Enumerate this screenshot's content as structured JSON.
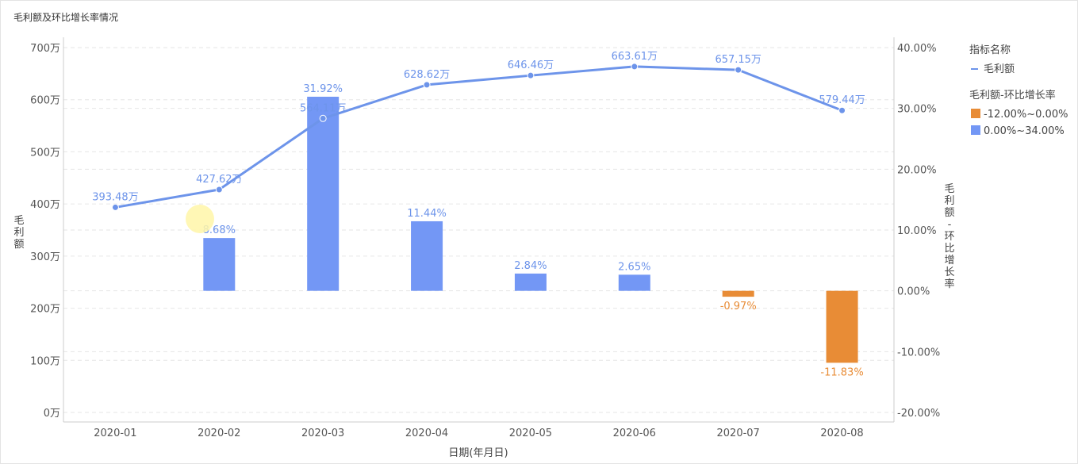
{
  "title": "毛利额及环比增长率情况",
  "colors": {
    "line": "#6d94ea",
    "bar_positive": "#7397f5",
    "bar_negative": "#e88c36",
    "grid": "#e6e6e6",
    "axis": "#cccccc"
  },
  "chart_data": {
    "type": "bar+line",
    "categories": [
      "2020-01",
      "2020-02",
      "2020-03",
      "2020-04",
      "2020-05",
      "2020-06",
      "2020-07",
      "2020-08"
    ],
    "xlabel": "日期(年月日)",
    "ylabel_left": "毛利额",
    "ylabel_right": "毛利额-环比增长率",
    "y_left": {
      "ticks": [
        "0万",
        "100万",
        "200万",
        "300万",
        "400万",
        "500万",
        "600万",
        "700万"
      ],
      "min": 0,
      "max": 700,
      "unit": "万"
    },
    "y_right": {
      "ticks": [
        "-20.00%",
        "-10.00%",
        "0.00%",
        "10.00%",
        "20.00%",
        "30.00%",
        "40.00%"
      ],
      "min": -20,
      "max": 40,
      "unit": "%"
    },
    "grid": true,
    "legend_placement": "right",
    "series": [
      {
        "name": "毛利额",
        "type": "line",
        "axis": "left",
        "values": [
          393.48,
          427.62,
          564.11,
          628.62,
          646.46,
          663.61,
          657.15,
          579.44
        ],
        "labels": [
          "393.48万",
          "427.62万",
          "564.11万",
          "628.62万",
          "646.46万",
          "663.61万",
          "657.15万",
          "579.44万"
        ]
      },
      {
        "name": "毛利额-环比增长率",
        "type": "bar",
        "axis": "right",
        "values": [
          null,
          8.68,
          31.92,
          11.44,
          2.84,
          2.65,
          -0.97,
          -11.83
        ],
        "labels": [
          "",
          "8.68%",
          "31.92%",
          "11.44%",
          "2.84%",
          "2.65%",
          "-0.97%",
          "-11.83%"
        ]
      }
    ],
    "legend": {
      "group1_title": "指标名称",
      "group1_items": [
        "毛利额"
      ],
      "group2_title": "毛利额-环比增长率",
      "group2_items": [
        {
          "label": "-12.00%~0.00%",
          "color": "#e88c36"
        },
        {
          "label": "0.00%~34.00%",
          "color": "#7397f5"
        }
      ]
    }
  }
}
